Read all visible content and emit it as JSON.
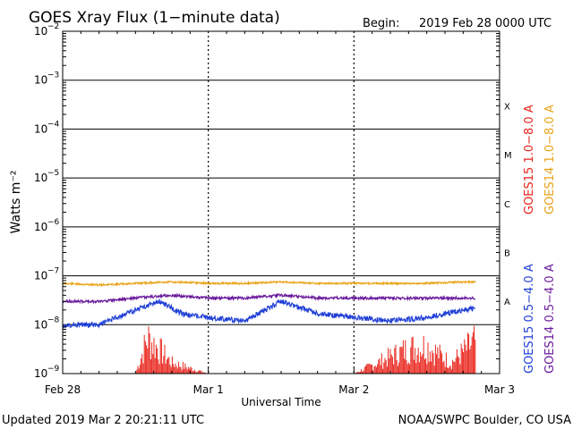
{
  "header": {
    "title": "GOES Xray Flux (1−minute data)",
    "begin_label": "Begin:",
    "begin_value": "2019 Feb 28 0000 UTC"
  },
  "footer": {
    "updated": "Updated 2019 Mar  2 20:21:11 UTC",
    "credit": "NOAA/SWPC Boulder, CO USA"
  },
  "colors": {
    "goes15_long": "#e8251c",
    "goes14_long": "#e8a317",
    "goes15_short": "#1f3fd6",
    "goes14_short": "#6a1a9c",
    "grid": "#000000",
    "spikes": "#ff0000"
  },
  "chart_data": {
    "type": "line",
    "y_scale": "log",
    "ylim": [
      1e-09,
      0.01
    ],
    "xlim": [
      "2019-02-28 00:00",
      "2019-03-03 00:00"
    ],
    "grid": true,
    "xlabel": "Universal Time",
    "ylabel": "Watts m⁻²",
    "y_tick_labels": [
      {
        "base": "10",
        "exp": "−2",
        "value": 0.01
      },
      {
        "base": "10",
        "exp": "−3",
        "value": 0.001
      },
      {
        "base": "10",
        "exp": "−4",
        "value": 0.0001
      },
      {
        "base": "10",
        "exp": "−5",
        "value": 1e-05
      },
      {
        "base": "10",
        "exp": "−6",
        "value": 1e-06
      },
      {
        "base": "10",
        "exp": "−7",
        "value": 1e-07
      },
      {
        "base": "10",
        "exp": "−8",
        "value": 1e-08
      },
      {
        "base": "10",
        "exp": "−9",
        "value": 1e-09
      }
    ],
    "x_tick_labels": [
      "Feb 28",
      "Mar 1",
      "Mar 2",
      "Mar 3"
    ],
    "flare_classes": [
      {
        "label": "X",
        "value": 0.0003
      },
      {
        "label": "M",
        "value": 3e-05
      },
      {
        "label": "C",
        "value": 3e-06
      },
      {
        "label": "B",
        "value": 3e-07
      },
      {
        "label": "A",
        "value": 3e-08
      }
    ],
    "series": [
      {
        "name": "GOES15 1.0−8.0 A",
        "color_key": "goes15_long",
        "x": [
          "2019-02-28 00:00",
          "2019-02-28 12:00",
          "2019-02-28 14:00",
          "2019-02-28 18:00",
          "2019-03-01 00:00",
          "2019-03-01 12:00",
          "2019-03-02 00:00",
          "2019-03-02 09:00",
          "2019-03-02 12:00",
          "2019-03-02 16:00",
          "2019-03-02 20:00"
        ],
        "values": [
          1e-09,
          1e-09,
          1e-08,
          2e-09,
          1e-09,
          1e-09,
          1e-09,
          5e-09,
          6e-09,
          2e-09,
          8e-09
        ]
      },
      {
        "name": "GOES14 1.0−8.0 A",
        "color_key": "goes14_long",
        "x": [
          "2019-02-28 00:00",
          "2019-02-28 06:00",
          "2019-02-28 12:00",
          "2019-02-28 18:00",
          "2019-03-01 00:00",
          "2019-03-01 06:00",
          "2019-03-01 12:00",
          "2019-03-01 18:00",
          "2019-03-02 00:00",
          "2019-03-02 06:00",
          "2019-03-02 12:00",
          "2019-03-02 18:00",
          "2019-03-02 20:00"
        ],
        "values": [
          7e-08,
          6.5e-08,
          7e-08,
          7.5e-08,
          7e-08,
          7e-08,
          7.5e-08,
          7e-08,
          7e-08,
          7e-08,
          7e-08,
          7.5e-08,
          7.5e-08
        ]
      },
      {
        "name": "GOES15 0.5−4.0 A",
        "color_key": "goes15_short",
        "x": [
          "2019-02-28 00:00",
          "2019-02-28 06:00",
          "2019-02-28 12:00",
          "2019-02-28 16:00",
          "2019-02-28 20:00",
          "2019-03-01 00:00",
          "2019-03-01 06:00",
          "2019-03-01 12:00",
          "2019-03-01 18:00",
          "2019-03-02 00:00",
          "2019-03-02 06:00",
          "2019-03-02 12:00",
          "2019-03-02 18:00",
          "2019-03-02 20:00"
        ],
        "values": [
          1e-08,
          1e-08,
          2e-08,
          3e-08,
          1.6e-08,
          1.4e-08,
          1.2e-08,
          3e-08,
          1.7e-08,
          1.4e-08,
          1.2e-08,
          1.4e-08,
          2e-08,
          2.2e-08
        ]
      },
      {
        "name": "GOES14 0.5−4.0 A",
        "color_key": "goes14_short",
        "x": [
          "2019-02-28 00:00",
          "2019-02-28 06:00",
          "2019-02-28 12:00",
          "2019-02-28 18:00",
          "2019-03-01 00:00",
          "2019-03-01 06:00",
          "2019-03-01 12:00",
          "2019-03-01 18:00",
          "2019-03-02 00:00",
          "2019-03-02 06:00",
          "2019-03-02 12:00",
          "2019-03-02 18:00",
          "2019-03-02 20:00"
        ],
        "values": [
          3e-08,
          3e-08,
          3.5e-08,
          4e-08,
          3.5e-08,
          3.5e-08,
          4e-08,
          3.5e-08,
          3.5e-08,
          3.5e-08,
          3.5e-08,
          3.5e-08,
          3.5e-08
        ]
      }
    ]
  }
}
